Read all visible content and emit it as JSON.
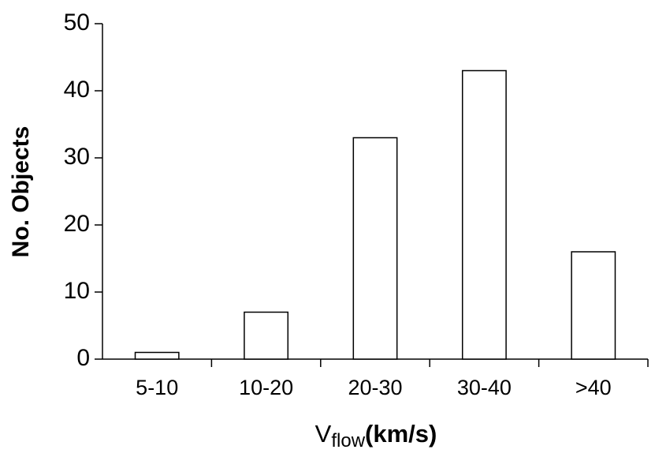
{
  "chart_data": {
    "type": "bar",
    "y_label": "No.  Objects",
    "x_label": {
      "text": "V",
      "subscript": "flow",
      "unit": "(km/s)"
    },
    "categories": [
      "5-10",
      "10-20",
      "20-30",
      "30-40",
      ">40"
    ],
    "values": [
      1,
      7,
      33,
      43,
      16
    ],
    "color": "#ffffff",
    "ylim": [
      0,
      50
    ],
    "yticks": [
      0,
      10,
      20,
      30,
      40,
      50
    ],
    "grid": false
  }
}
